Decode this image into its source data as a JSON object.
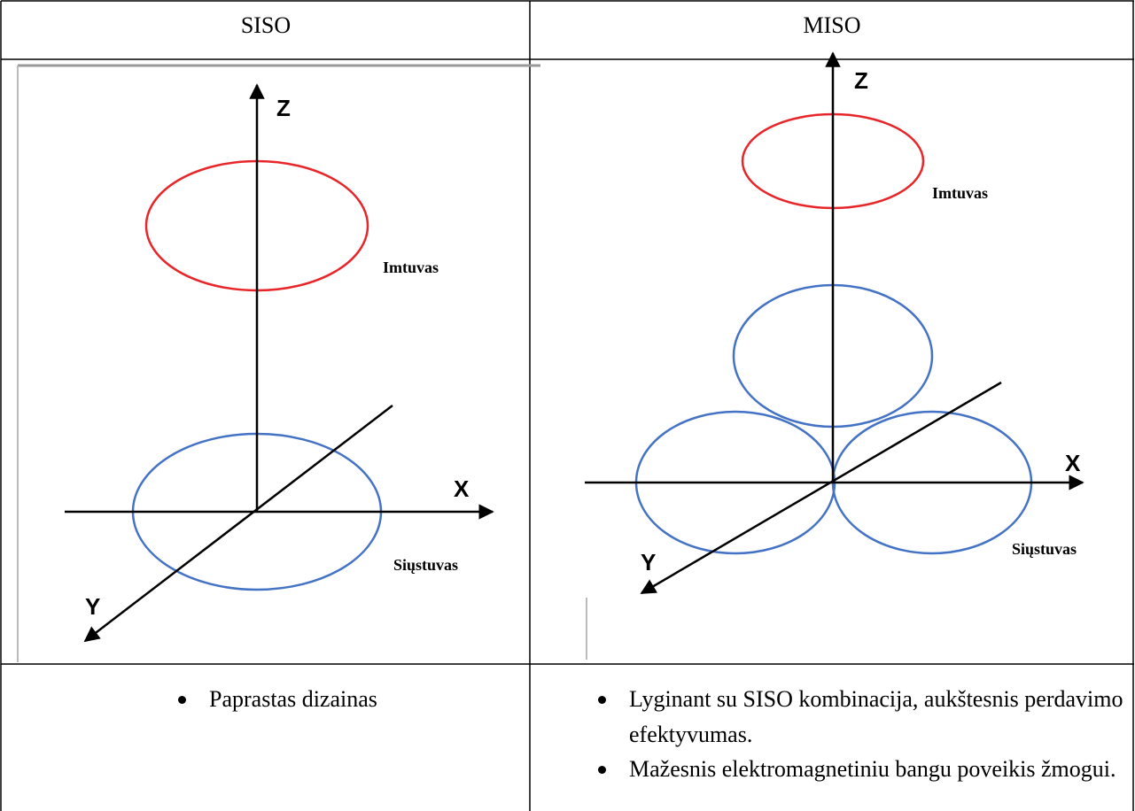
{
  "table": {
    "header": [
      "SISO",
      "MISO"
    ],
    "diagrams": [
      {
        "z": "Z",
        "x": "X",
        "y": "Y",
        "receiver": "Imtuvas",
        "transmitter": "Siųstuvas"
      },
      {
        "z": "Z",
        "x": "X",
        "y": "Y",
        "receiver": "Imtuvas",
        "transmitter": "Siųstuvas"
      }
    ],
    "bullets": [
      [
        "Paprastas dizainas"
      ],
      [
        "Lyginant su SISO kombinacija, aukštesnis perdavimo efektyvumas.",
        "Mažesnis elektromagnetiniu bangu poveikis žmogui."
      ]
    ]
  }
}
